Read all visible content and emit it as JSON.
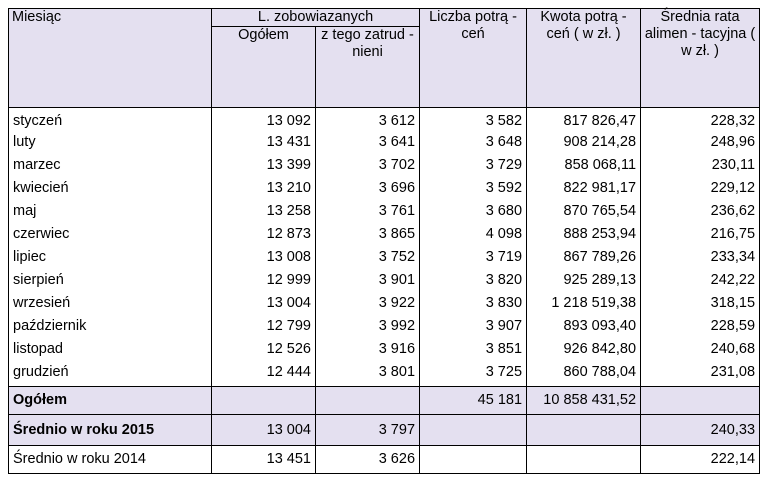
{
  "header": {
    "month_label": "Miesiąc",
    "obligated_group": "L. zobowiazanych",
    "total_label": "Ogółem",
    "employed_label": "z tego zatrud - nieni",
    "deductions_count": "Liczba potrą - ceń",
    "deductions_amount": "Kwota potrą - ceń ( w zł. )",
    "average_rate": "Średnia rata alimen - tacyjna ( w zł. )"
  },
  "rows": [
    {
      "month": "styczeń",
      "total": "13 092",
      "employed": "3 612",
      "count": "3 582",
      "amount": "817 826,47",
      "avg": "228,32"
    },
    {
      "month": "luty",
      "total": "13 431",
      "employed": "3 641",
      "count": "3 648",
      "amount": "908 214,28",
      "avg": "248,96"
    },
    {
      "month": "marzec",
      "total": "13 399",
      "employed": "3 702",
      "count": "3 729",
      "amount": "858 068,11",
      "avg": "230,11"
    },
    {
      "month": "kwiecień",
      "total": "13 210",
      "employed": "3 696",
      "count": "3 592",
      "amount": "822 981,17",
      "avg": "229,12"
    },
    {
      "month": "maj",
      "total": "13 258",
      "employed": "3 761",
      "count": "3 680",
      "amount": "870 765,54",
      "avg": "236,62"
    },
    {
      "month": "czerwiec",
      "total": "12 873",
      "employed": "3 865",
      "count": "4 098",
      "amount": "888 253,94",
      "avg": "216,75"
    },
    {
      "month": "lipiec",
      "total": "13 008",
      "employed": "3 752",
      "count": "3 719",
      "amount": "867 789,26",
      "avg": "233,34"
    },
    {
      "month": "sierpień",
      "total": "12 999",
      "employed": "3 901",
      "count": "3 820",
      "amount": "925 289,13",
      "avg": "242,22"
    },
    {
      "month": "wrzesień",
      "total": "13 004",
      "employed": "3 922",
      "count": "3 830",
      "amount": "1 218 519,38",
      "avg": "318,15"
    },
    {
      "month": "październik",
      "total": "12 799",
      "employed": "3 992",
      "count": "3 907",
      "amount": "893 093,40",
      "avg": "228,59"
    },
    {
      "month": "listopad",
      "total": "12 526",
      "employed": "3 916",
      "count": "3 851",
      "amount": "926 842,80",
      "avg": "240,68"
    },
    {
      "month": "grudzień",
      "total": "12 444",
      "employed": "3 801",
      "count": "3 725",
      "amount": "860 788,04",
      "avg": "231,08"
    }
  ],
  "summary": {
    "total_label": "Ogółem",
    "total_count": "45 181",
    "total_amount": "10 858 431,52",
    "avg2015_label": "Średnio w roku 2015",
    "avg2015_total": "13 004",
    "avg2015_employed": "3 797",
    "avg2015_avg": "240,33",
    "avg2014_label": "Średnio w roku 2014",
    "avg2014_total": "13 451",
    "avg2014_employed": "3 626",
    "avg2014_avg": "222,14"
  }
}
